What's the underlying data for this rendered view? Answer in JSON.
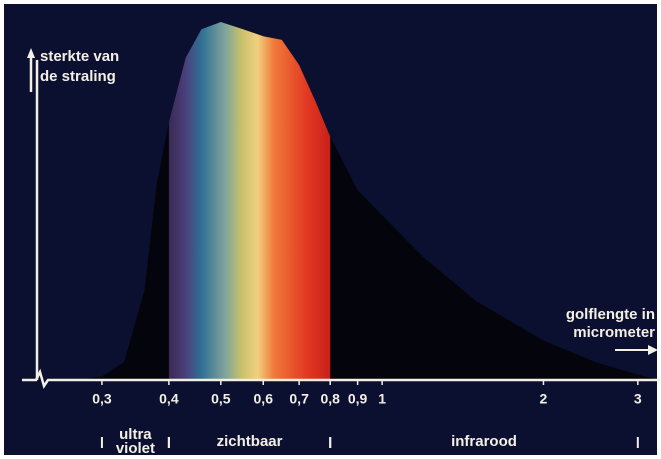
{
  "chart_data": {
    "type": "area",
    "y_label_lines": [
      "sterkte van",
      "de straling"
    ],
    "x_label_lines": [
      "golflengte in",
      "micrometer"
    ],
    "log_x": true,
    "xlim": [
      0.24,
      3.3
    ],
    "ylim": [
      0,
      100
    ],
    "xticks": [
      {
        "value": 0.3,
        "label": "0,3"
      },
      {
        "value": 0.4,
        "label": "0,4"
      },
      {
        "value": 0.5,
        "label": "0,5"
      },
      {
        "value": 0.6,
        "label": "0,6"
      },
      {
        "value": 0.7,
        "label": "0,7"
      },
      {
        "value": 0.8,
        "label": "0,8"
      },
      {
        "value": 0.9,
        "label": "0,9"
      },
      1,
      2,
      3
    ],
    "series": [
      {
        "color": "#04040c",
        "x": [
          0.27,
          0.3,
          0.33,
          0.36,
          0.38,
          0.4,
          0.43,
          0.46,
          0.5,
          0.55,
          0.6,
          0.65,
          0.7,
          0.75,
          0.8,
          0.9,
          1,
          1.2,
          1.5,
          2,
          2.5,
          3,
          3.3
        ],
        "values": [
          0,
          1,
          5,
          25,
          55,
          72,
          90,
          98,
          100,
          98,
          96,
          95,
          88,
          78,
          68,
          53,
          46,
          34,
          22,
          11,
          5,
          1.5,
          0
        ]
      }
    ],
    "visible_band": [
      0.4,
      0.8
    ],
    "regions": [
      {
        "lines": [
          "ultra",
          "violet"
        ],
        "range": [
          0.3,
          0.4
        ]
      },
      {
        "lines": [
          "zichtbaar"
        ],
        "range": [
          0.4,
          0.8
        ]
      },
      {
        "lines": [
          "infrarood"
        ],
        "range": [
          0.8,
          3
        ]
      }
    ]
  }
}
